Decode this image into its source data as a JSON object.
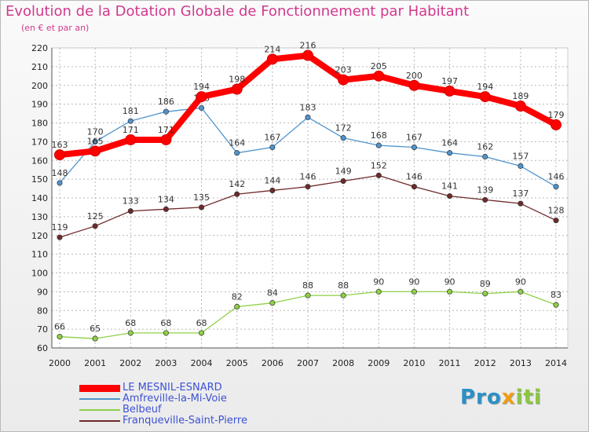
{
  "header": {
    "title": "Evolution de la Dotation Globale de Fonctionnement par Habitant",
    "subtitle": "(en € et par an)"
  },
  "logo": {
    "part1": "Pro",
    "part2": "x",
    "part3": "iti"
  },
  "colors": {
    "title": "#d2398e",
    "legend_text": "#3d52d5",
    "grid": "#b7b7b7"
  },
  "chart_data": {
    "type": "line",
    "title": "Evolution de la Dotation Globale de Fonctionnement par Habitant",
    "subtitle": "(en € et par an)",
    "x": [
      "2000",
      "2001",
      "2002",
      "2003",
      "2004",
      "2005",
      "2006",
      "2007",
      "2008",
      "2009",
      "2010",
      "2011",
      "2012",
      "2013",
      "2014"
    ],
    "ylim": [
      60,
      220
    ],
    "yticks": [
      60,
      70,
      80,
      90,
      100,
      110,
      120,
      130,
      140,
      150,
      160,
      170,
      180,
      190,
      200,
      210,
      220
    ],
    "grid": true,
    "legend_position": "bottom-left",
    "series": [
      {
        "name": "LE MESNIL-ESNARD",
        "color": "#ff0000",
        "values": [
          163,
          165,
          171,
          171,
          194,
          198,
          214,
          216,
          203,
          205,
          200,
          197,
          194,
          189,
          179
        ]
      },
      {
        "name": "Amfreville-la-Mi-Voie",
        "color": "#4f94cd",
        "values": [
          148,
          170,
          181,
          186,
          188,
          164,
          167,
          183,
          172,
          168,
          167,
          164,
          162,
          157,
          146
        ]
      },
      {
        "name": "Belbeuf",
        "color": "#8ed046",
        "values": [
          66,
          65,
          68,
          68,
          68,
          82,
          84,
          88,
          88,
          90,
          90,
          90,
          89,
          90,
          83
        ]
      },
      {
        "name": "Franqueville-Saint-Pierre",
        "color": "#6e2a2a",
        "values": [
          119,
          125,
          133,
          134,
          135,
          142,
          144,
          146,
          149,
          152,
          146,
          141,
          139,
          137,
          128
        ]
      }
    ]
  }
}
